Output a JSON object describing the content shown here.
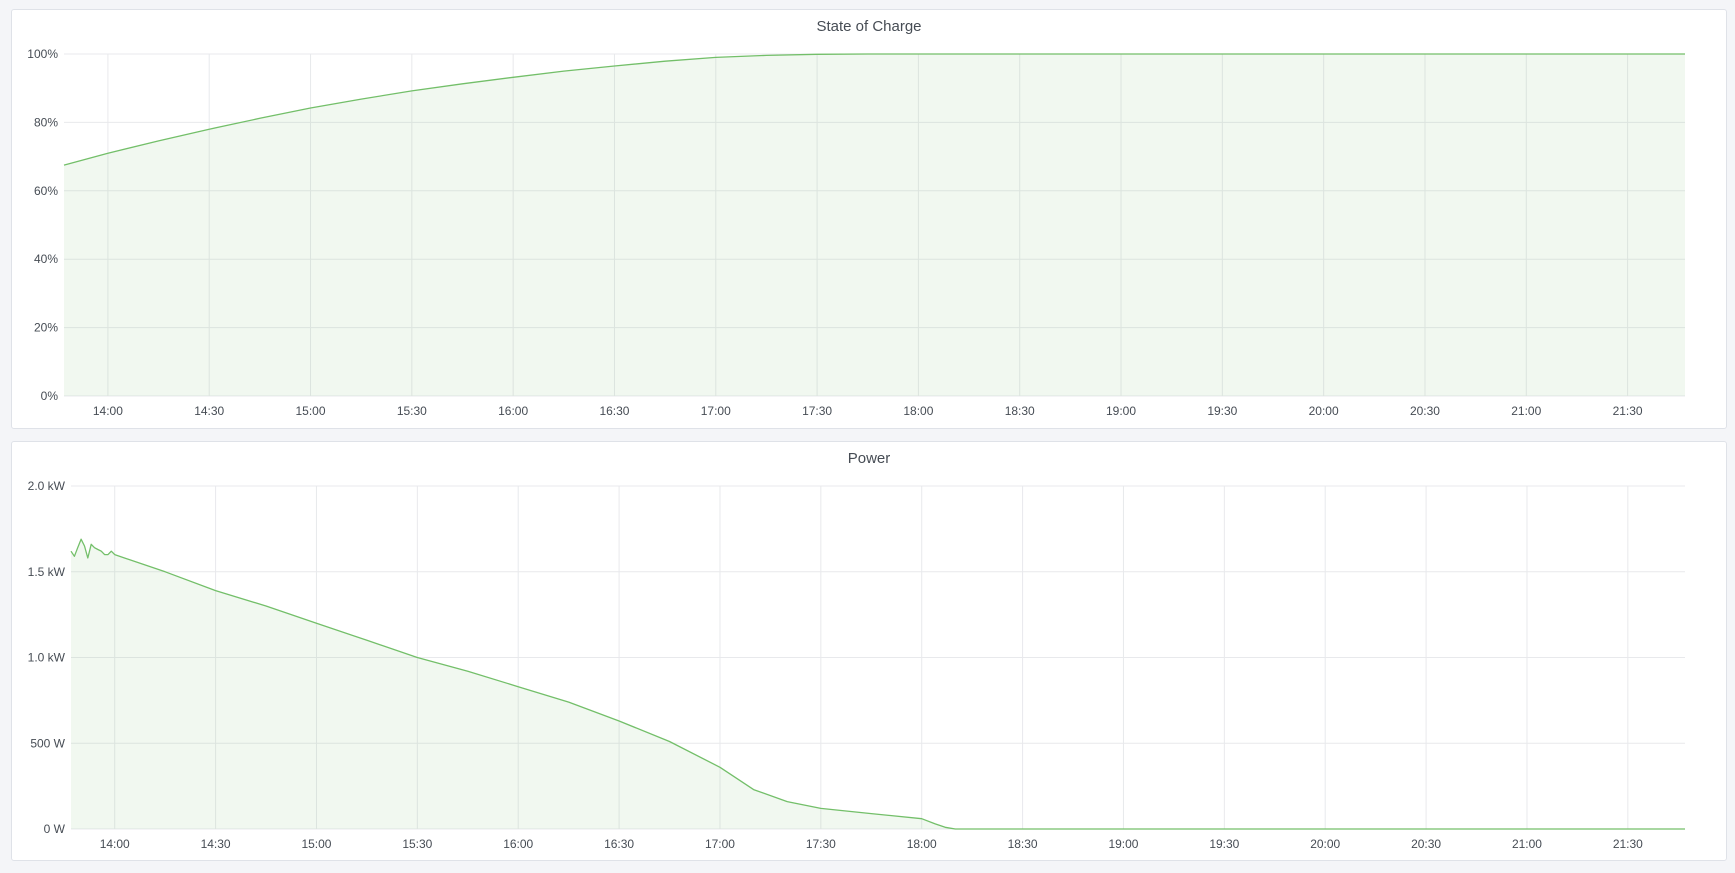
{
  "chart_data": [
    {
      "type": "area",
      "title": "State of Charge",
      "xlim": [
        "13:47",
        "21:47"
      ],
      "ylim": [
        0,
        100
      ],
      "x_ticks": [
        "14:00",
        "14:30",
        "15:00",
        "15:30",
        "16:00",
        "16:30",
        "17:00",
        "17:30",
        "18:00",
        "18:30",
        "19:00",
        "19:30",
        "20:00",
        "20:30",
        "21:00",
        "21:30"
      ],
      "y_ticks": [
        {
          "v": 0,
          "label": "0%"
        },
        {
          "v": 20,
          "label": "20%"
        },
        {
          "v": 40,
          "label": "40%"
        },
        {
          "v": 60,
          "label": "60%"
        },
        {
          "v": 80,
          "label": "80%"
        },
        {
          "v": 100,
          "label": "100%"
        }
      ],
      "grid": true,
      "color": "#73bf69",
      "series": [
        {
          "x": [
            "13:47",
            "14:00",
            "14:15",
            "14:30",
            "14:45",
            "15:00",
            "15:15",
            "15:30",
            "15:45",
            "16:00",
            "16:15",
            "16:30",
            "16:45",
            "17:00",
            "17:15",
            "17:30",
            "17:45",
            "18:00",
            "19:00",
            "20:00",
            "21:00",
            "21:47"
          ],
          "y": [
            67.5,
            71,
            74.6,
            78,
            81.2,
            84.2,
            86.8,
            89.2,
            91.3,
            93.2,
            95,
            96.5,
            97.9,
            99,
            99.6,
            99.9,
            100,
            100,
            100,
            100,
            100,
            100
          ]
        }
      ]
    },
    {
      "type": "area",
      "title": "Power",
      "xlim": [
        "13:47",
        "21:47"
      ],
      "ylim": [
        0,
        2000
      ],
      "unit": "W",
      "x_ticks": [
        "14:00",
        "14:30",
        "15:00",
        "15:30",
        "16:00",
        "16:30",
        "17:00",
        "17:30",
        "18:00",
        "18:30",
        "19:00",
        "19:30",
        "20:00",
        "20:30",
        "21:00",
        "21:30"
      ],
      "y_ticks": [
        {
          "v": 0,
          "label": "0 W"
        },
        {
          "v": 500,
          "label": "500 W"
        },
        {
          "v": 1000,
          "label": "1.0 kW"
        },
        {
          "v": 1500,
          "label": "1.5 kW"
        },
        {
          "v": 2000,
          "label": "2.0 kW"
        }
      ],
      "grid": true,
      "color": "#73bf69",
      "series": [
        {
          "x": [
            "13:47",
            "13:48",
            "13:49",
            "13:50",
            "13:51",
            "13:52",
            "13:53",
            "13:54",
            "13:55",
            "13:56",
            "13:57",
            "13:58",
            "13:59",
            "14:00",
            "14:15",
            "14:30",
            "14:45",
            "15:00",
            "15:15",
            "15:30",
            "15:45",
            "16:00",
            "16:15",
            "16:30",
            "16:45",
            "17:00",
            "17:10",
            "17:20",
            "17:30",
            "17:45",
            "18:00",
            "18:04",
            "18:07",
            "18:10",
            "19:00",
            "20:00",
            "21:00",
            "21:47"
          ],
          "y": [
            1620,
            1590,
            1640,
            1690,
            1650,
            1580,
            1660,
            1640,
            1630,
            1620,
            1600,
            1600,
            1620,
            1600,
            1500,
            1390,
            1300,
            1200,
            1100,
            1000,
            920,
            830,
            740,
            630,
            510,
            360,
            230,
            160,
            120,
            90,
            60,
            30,
            10,
            0,
            0,
            0,
            0,
            0
          ]
        }
      ]
    }
  ]
}
